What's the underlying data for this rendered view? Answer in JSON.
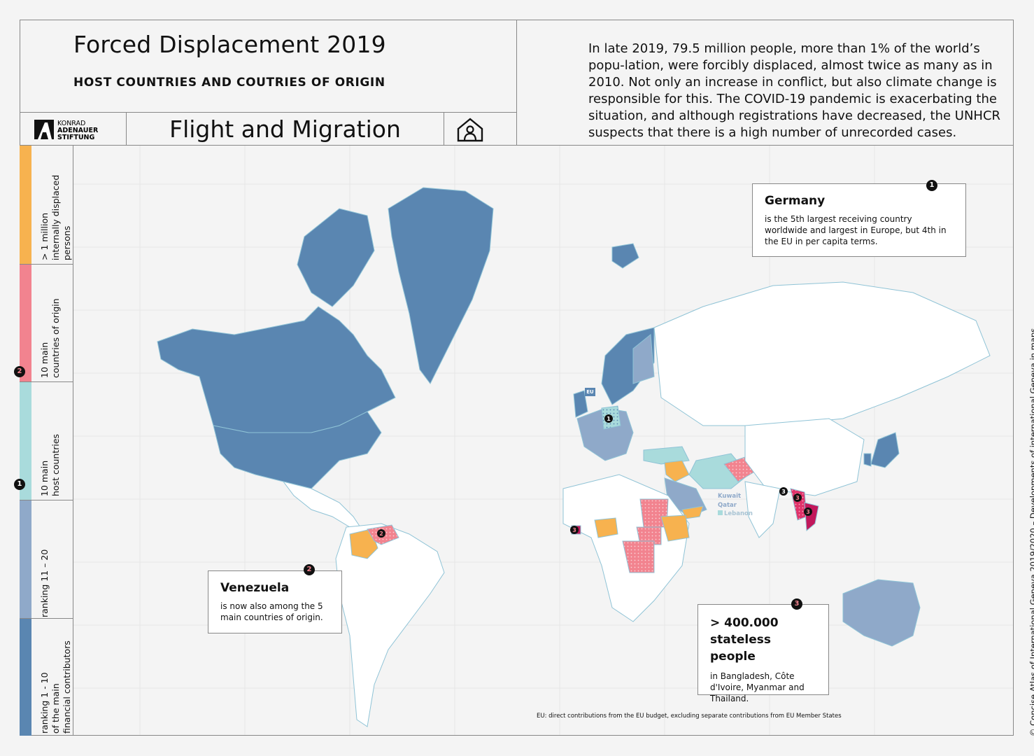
{
  "header": {
    "title": "Forced Displacement 2019",
    "subtitle": "HOST COUNTRIES AND COUTRIES OF ORIGIN",
    "series_title": "Flight and Migration",
    "logo": {
      "line1": "KONRAD",
      "line2": "ADENAUER",
      "line3": "STIFTUNG"
    },
    "intro": "In late 2019, 79.5 million people, more than 1% of the world’s popu-lation, were forcibly displaced, almost twice as many as in 2010. Not only an increase in conflict, but also climate change is responsible for this. The COVID-19 pandemic is exacerbating the situation, and although registrations have decreased, the UNHCR suspects that there is a high number of unrecorded cases."
  },
  "legend": [
    {
      "label": "> 1 million\ninternally displaced\npersons",
      "color": "#f7b24f"
    },
    {
      "label": "10 main\ncountries of origin",
      "color": "#f2838f",
      "marker": "2"
    },
    {
      "label": "10 main\nhost countries",
      "color": "#a9dbdc",
      "marker": "1"
    },
    {
      "label": "ranking 11 – 20",
      "color": "#8fa9c9"
    },
    {
      "label": "ranking 1 - 10\nof the main\nfinancial contributors",
      "color": "#5a86b1"
    }
  ],
  "callouts": {
    "germany": {
      "marker": "1",
      "title": "Germany",
      "text": "is the 5th largest receiving country worldwide and largest in Europe, but 4th in the EU in per capita terms."
    },
    "venezuela": {
      "marker": "2",
      "title": "Venezuela",
      "text": "is now also among the 5 main countries of origin."
    },
    "stateless": {
      "marker": "3",
      "title": "> 400.000 stateless people",
      "text": "in Bangladesh, Côte d'Ivoire, Myanmar and Thailand."
    }
  },
  "map_labels": {
    "eu": "EU",
    "kuwait": "Kuwait",
    "qatar": "Qatar",
    "lebanon": "Lebanon"
  },
  "footnote": "EU: direct contributions from the EU budget, excluding separate contributions from EU Member States",
  "credit": "© Concise Atlas of International Geneva 2019/2020 – Developments of international Geneva in maps"
}
